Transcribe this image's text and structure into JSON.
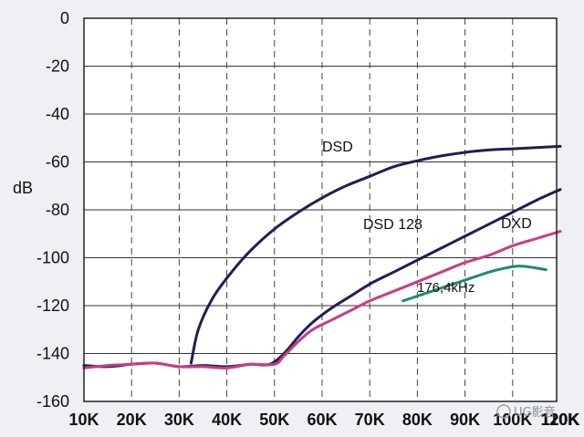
{
  "chart_data": {
    "type": "line",
    "title": "",
    "xlabel": "",
    "ylabel": "dB",
    "xlim": [
      10000,
      110000
    ],
    "ylim": [
      -160,
      0
    ],
    "grid": "dashed vertical, solid horizontal",
    "x_ticks": [
      "10K",
      "20K",
      "30K",
      "40K",
      "50K",
      "60K",
      "70K",
      "80K",
      "90K",
      "100K",
      "110K",
      "120K"
    ],
    "y_ticks": [
      "0",
      "-20",
      "-40",
      "-60",
      "-80",
      "-100",
      "-120",
      "-140",
      "-160"
    ],
    "series": [
      {
        "name": "DSD",
        "color": "#1f1f55",
        "x": [
          32500,
          34000,
          37000,
          41000,
          45000,
          50000,
          55000,
          60000,
          65000,
          70000,
          75000,
          80000,
          85000,
          90000,
          95000,
          100000,
          105000,
          110000
        ],
        "y": [
          -144,
          -130,
          -117,
          -106,
          -97,
          -88,
          -81,
          -75,
          -70,
          -66,
          -62,
          -59.5,
          -57.5,
          -56,
          -55,
          -54.5,
          -54,
          -53.5
        ]
      },
      {
        "name": "DSD 128",
        "color": "#1f1f55",
        "x": [
          10000,
          15000,
          20000,
          25000,
          30000,
          35000,
          40000,
          45000,
          49000,
          52000,
          55000,
          58000,
          62000,
          66000,
          70000,
          75000,
          80000,
          85000,
          90000,
          95000,
          100000,
          105000,
          110000
        ],
        "y": [
          -145,
          -145.5,
          -144.5,
          -144,
          -145.5,
          -145,
          -145.5,
          -144.5,
          -144.5,
          -140,
          -133,
          -127,
          -121,
          -116,
          -111,
          -106,
          -101,
          -96,
          -91,
          -86,
          -81,
          -76,
          -71.5
        ]
      },
      {
        "name": "DXD",
        "color": "#c93c86",
        "x": [
          10000,
          15000,
          20000,
          25000,
          30000,
          35000,
          40000,
          45000,
          50000,
          52000,
          55000,
          58000,
          62000,
          66000,
          70000,
          75000,
          80000,
          85000,
          90000,
          95000,
          100000,
          105000,
          110000
        ],
        "y": [
          -146,
          -145,
          -144.5,
          -144,
          -145.5,
          -145.5,
          -146,
          -144.5,
          -144.5,
          -141,
          -135,
          -130,
          -126,
          -122,
          -118,
          -114,
          -110,
          -106,
          -102,
          -99,
          -95,
          -92,
          -89
        ]
      },
      {
        "name": "176,4kHz",
        "color": "#1d8a72",
        "x": [
          77000,
          80000,
          83000,
          86000,
          89000,
          92000,
          95000,
          98000,
          101000,
          104000,
          107000
        ],
        "y": [
          -118,
          -116,
          -114,
          -112,
          -110,
          -108,
          -106,
          -104.5,
          -103.5,
          -104,
          -105
        ]
      }
    ],
    "annotations": [
      "DSD",
      "DSD 128",
      "DXD",
      "176,4kHz"
    ]
  },
  "watermark": "UG影音"
}
